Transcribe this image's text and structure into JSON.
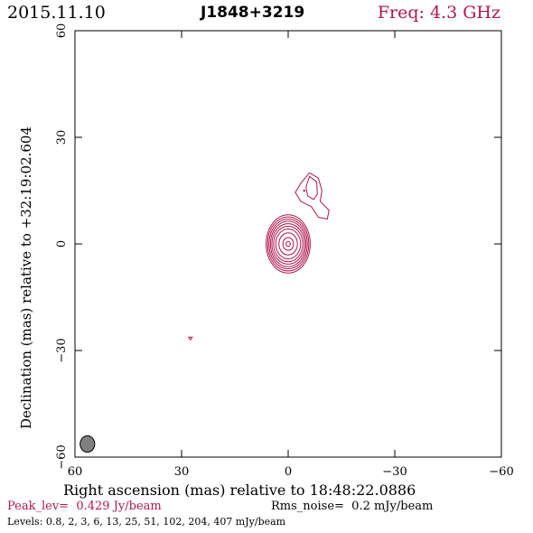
{
  "header": {
    "date": "2015.11.10",
    "source": "J1848+3219",
    "freq": "Freq: 4.3 GHz"
  },
  "footer": {
    "peak_label": "Peak_lev=",
    "peak_value": "0.429 Jy/beam",
    "rms_label": "Rms_noise=",
    "rms_value": "0.2 mJy/beam",
    "levels": "Levels: 0.8,   2,   3,   6,  13,  25,  51, 102, 204, 407 mJy/beam"
  },
  "colors": {
    "contour": "#b0174d",
    "beam": "#808080",
    "text_accent": "#b0174d"
  },
  "chart_data": {
    "type": "contour",
    "xlabel": "Right ascension (mas) relative to 18:48:22.0886",
    "ylabel": "Declination (mas) relative to +32:19:02.604",
    "xlim": [
      60,
      -60
    ],
    "ylim": [
      -60,
      60
    ],
    "xticks": [
      60,
      30,
      0,
      -30,
      -60
    ],
    "yticks": [
      60,
      30,
      0,
      -30,
      -60
    ],
    "xtick_labels": [
      "60",
      "30",
      "0",
      "−30",
      "−60"
    ],
    "ytick_labels": [
      "60",
      "30",
      "0",
      "−30",
      "−60"
    ],
    "levels_mJy_per_beam": [
      0.8,
      2,
      3,
      6,
      13,
      25,
      51,
      102,
      204,
      407
    ],
    "components": [
      {
        "name": "core",
        "x": 0,
        "y": 0,
        "rx": [
          6.2,
          5.8,
          5.4,
          5.0,
          4.6,
          4.1,
          3.5,
          2.6,
          1.5,
          0.6
        ],
        "ry": [
          8.2,
          7.6,
          7.0,
          6.4,
          5.7,
          5.0,
          4.2,
          3.1,
          1.8,
          0.7
        ]
      },
      {
        "name": "jet",
        "peak": [
          -4.5,
          15
        ]
      },
      {
        "name": "noise-spot",
        "x": 27.5,
        "y": -26.5
      }
    ],
    "beam": {
      "x": 56.5,
      "y": -56.3,
      "bmaj_mas": 4.4,
      "bmin_mas": 3.9
    }
  }
}
